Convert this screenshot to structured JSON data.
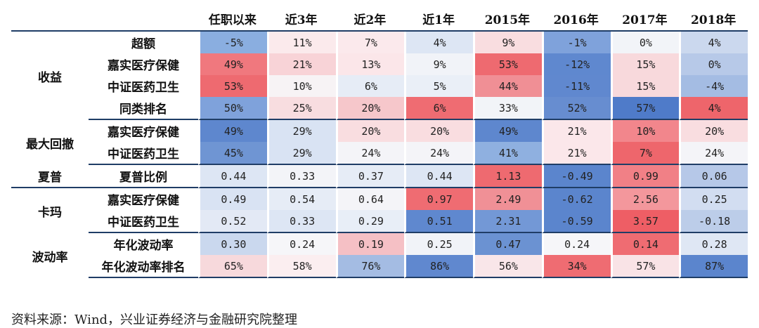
{
  "headers": [
    "任职以来",
    "近3年",
    "近2年",
    "近1年",
    "2015年",
    "2016年",
    "2017年",
    "2018年"
  ],
  "groups": [
    {
      "name": "收益",
      "rows": [
        {
          "label": "超额",
          "values": [
            "-5%",
            "11%",
            "7%",
            "4%",
            "9%",
            "-1%",
            "0%",
            "4%"
          ],
          "colors": [
            "#8aaee0",
            "#fbeaec",
            "#fbe9ec",
            "#dde6f4",
            "#f9dde0",
            "#7fa2db",
            "#f2f4f8",
            "#cbd8ee"
          ]
        },
        {
          "label": "嘉实医疗保健",
          "values": [
            "49%",
            "21%",
            "13%",
            "9%",
            "53%",
            "-12%",
            "15%",
            "0%"
          ],
          "colors": [
            "#f0787e",
            "#f8d3d7",
            "#fbe6e9",
            "#f1f3f8",
            "#ee6a70",
            "#5f88cf",
            "#f8d9dc",
            "#b7c9e8"
          ]
        },
        {
          "label": "中证医药卫生",
          "values": [
            "53%",
            "10%",
            "6%",
            "5%",
            "44%",
            "-11%",
            "15%",
            "-4%"
          ],
          "colors": [
            "#ee6a70",
            "#f7f3f5",
            "#e6ecf6",
            "#eaeff7",
            "#f08f95",
            "#6088cf",
            "#f8d9dc",
            "#a4bce3"
          ]
        },
        {
          "label": "同类排名",
          "values": [
            "50%",
            "25%",
            "20%",
            "6%",
            "33%",
            "52%",
            "57%",
            "4%"
          ],
          "colors": [
            "#7fa2db",
            "#f8dde0",
            "#f6c7cb",
            "#ef6c72",
            "#f2f4f8",
            "#678dd0",
            "#4f7bc9",
            "#ee656b"
          ]
        }
      ]
    },
    {
      "name": "最大回撤",
      "rows": [
        {
          "label": "嘉实医疗保健",
          "values": [
            "49%",
            "29%",
            "20%",
            "20%",
            "49%",
            "21%",
            "10%",
            "20%"
          ],
          "colors": [
            "#5e87ce",
            "#d9e3f3",
            "#f9dde0",
            "#f9dde0",
            "#5e87ce",
            "#fbe7ea",
            "#f2868c",
            "#f9dde0"
          ]
        },
        {
          "label": "中证医药卫生",
          "values": [
            "45%",
            "29%",
            "24%",
            "24%",
            "41%",
            "21%",
            "7%",
            "24%"
          ],
          "colors": [
            "#6f95d3",
            "#d9e3f3",
            "#f4f4f8",
            "#f4f4f8",
            "#8fb0e0",
            "#fbe7ea",
            "#ee666c",
            "#f4f4f8"
          ]
        }
      ]
    },
    {
      "name": "夏普",
      "rows": [
        {
          "label": "夏普比例",
          "values": [
            "0.44",
            "0.33",
            "0.37",
            "0.44",
            "1.13",
            "-0.49",
            "0.99",
            "0.06"
          ],
          "colors": [
            "#dde6f4",
            "#f3f4f8",
            "#e6ecf6",
            "#dde6f4",
            "#ee6a70",
            "#5b85cd",
            "#f18086",
            "#b6c8e8"
          ]
        }
      ]
    },
    {
      "name": "卡玛",
      "rows": [
        {
          "label": "嘉实医疗保健",
          "values": [
            "0.49",
            "0.54",
            "0.64",
            "0.97",
            "2.49",
            "-0.62",
            "2.56",
            "0.25"
          ],
          "colors": [
            "#d9e3f3",
            "#e6ecf6",
            "#f4f4f8",
            "#ef6c72",
            "#f09096",
            "#5b85cd",
            "#f3979c",
            "#d2ddf1"
          ]
        },
        {
          "label": "中证医药卫生",
          "values": [
            "0.52",
            "0.33",
            "0.29",
            "0.51",
            "2.31",
            "-0.59",
            "3.57",
            "-0.18"
          ],
          "colors": [
            "#e3e9f5",
            "#dde6f4",
            "#e8eef7",
            "#5f88cf",
            "#7398d6",
            "#5b85cd",
            "#ee5e65",
            "#bccde9"
          ]
        }
      ]
    },
    {
      "name": "波动率",
      "rows": [
        {
          "label": "年化波动率",
          "values": [
            "0.30",
            "0.24",
            "0.19",
            "0.25",
            "0.47",
            "0.24",
            "0.14",
            "0.28"
          ],
          "colors": [
            "#cad8ee",
            "#f6f6f9",
            "#f5c0c5",
            "#f1f3f8",
            "#6b92d2",
            "#f6f6f9",
            "#ef6c72",
            "#dfe7f4"
          ]
        },
        {
          "label": "年化波动率排名",
          "values": [
            "65%",
            "58%",
            "76%",
            "86%",
            "56%",
            "34%",
            "57%",
            "87%"
          ],
          "colors": [
            "#f7d9dc",
            "#fbeef0",
            "#a4bce3",
            "#6088cf",
            "#f9e6e9",
            "#ef6c72",
            "#f9e3e6",
            "#5b85cd"
          ]
        }
      ]
    }
  ],
  "source": "资料来源：Wind，兴业证券经济与金融研究院整理"
}
